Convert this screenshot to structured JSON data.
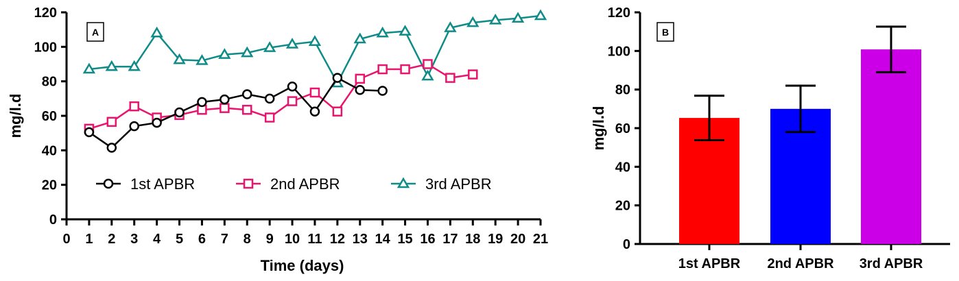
{
  "chart_data": [
    {
      "type": "line",
      "panel_label": "A",
      "xlabel": "Time (days)",
      "ylabel": "mg/l.d",
      "xlim": [
        0,
        21
      ],
      "ylim": [
        0,
        120
      ],
      "x_ticks": [
        0,
        1,
        2,
        3,
        4,
        5,
        6,
        7,
        8,
        9,
        10,
        11,
        12,
        13,
        14,
        15,
        16,
        17,
        18,
        19,
        20,
        21
      ],
      "y_ticks": [
        0,
        20,
        40,
        60,
        80,
        100,
        120
      ],
      "legend_position": "center-left",
      "series": [
        {
          "name": "1st APBR",
          "color": "#000000",
          "marker": "circle",
          "x": [
            1,
            2,
            3,
            4,
            5,
            6,
            7,
            8,
            9,
            10,
            11,
            12,
            13,
            14
          ],
          "y": [
            50.5,
            41.5,
            54,
            56,
            62,
            68,
            69.5,
            72.5,
            70,
            77,
            62.5,
            82,
            75,
            74.5
          ]
        },
        {
          "name": "2nd APBR",
          "color": "#e8156e",
          "marker": "square",
          "x": [
            1,
            2,
            3,
            4,
            5,
            6,
            7,
            8,
            9,
            10,
            11,
            12,
            13,
            14,
            15,
            16,
            17,
            18
          ],
          "y": [
            52.5,
            56.5,
            65.5,
            59,
            60.5,
            63.5,
            64.5,
            63.5,
            59,
            68.5,
            73.5,
            62.5,
            81.5,
            87,
            87,
            90,
            82,
            84
          ]
        },
        {
          "name": "3rd APBR",
          "color": "#0f8c88",
          "marker": "triangle",
          "x": [
            1,
            2,
            3,
            4,
            5,
            6,
            7,
            8,
            9,
            10,
            11,
            12,
            13,
            14,
            15,
            16,
            17,
            18,
            19,
            20,
            21
          ],
          "y": [
            87,
            88.5,
            88.5,
            108,
            92.5,
            92,
            95.5,
            96.5,
            99.5,
            101.5,
            103,
            79,
            104.5,
            108,
            109,
            83,
            111,
            114,
            115.5,
            116.5,
            118
          ]
        }
      ]
    },
    {
      "type": "bar",
      "panel_label": "B",
      "xlabel": "",
      "ylabel": "mg/l.d",
      "ylim": [
        0,
        120
      ],
      "y_ticks": [
        0,
        20,
        40,
        60,
        80,
        100,
        120
      ],
      "categories": [
        "1st APBR",
        "2nd APBR",
        "3rd APBR"
      ],
      "values": [
        65.3,
        70,
        100.8
      ],
      "errors": [
        11.5,
        12,
        11.8
      ],
      "colors": [
        "#ff0000",
        "#0000ff",
        "#cc00e6"
      ]
    }
  ]
}
